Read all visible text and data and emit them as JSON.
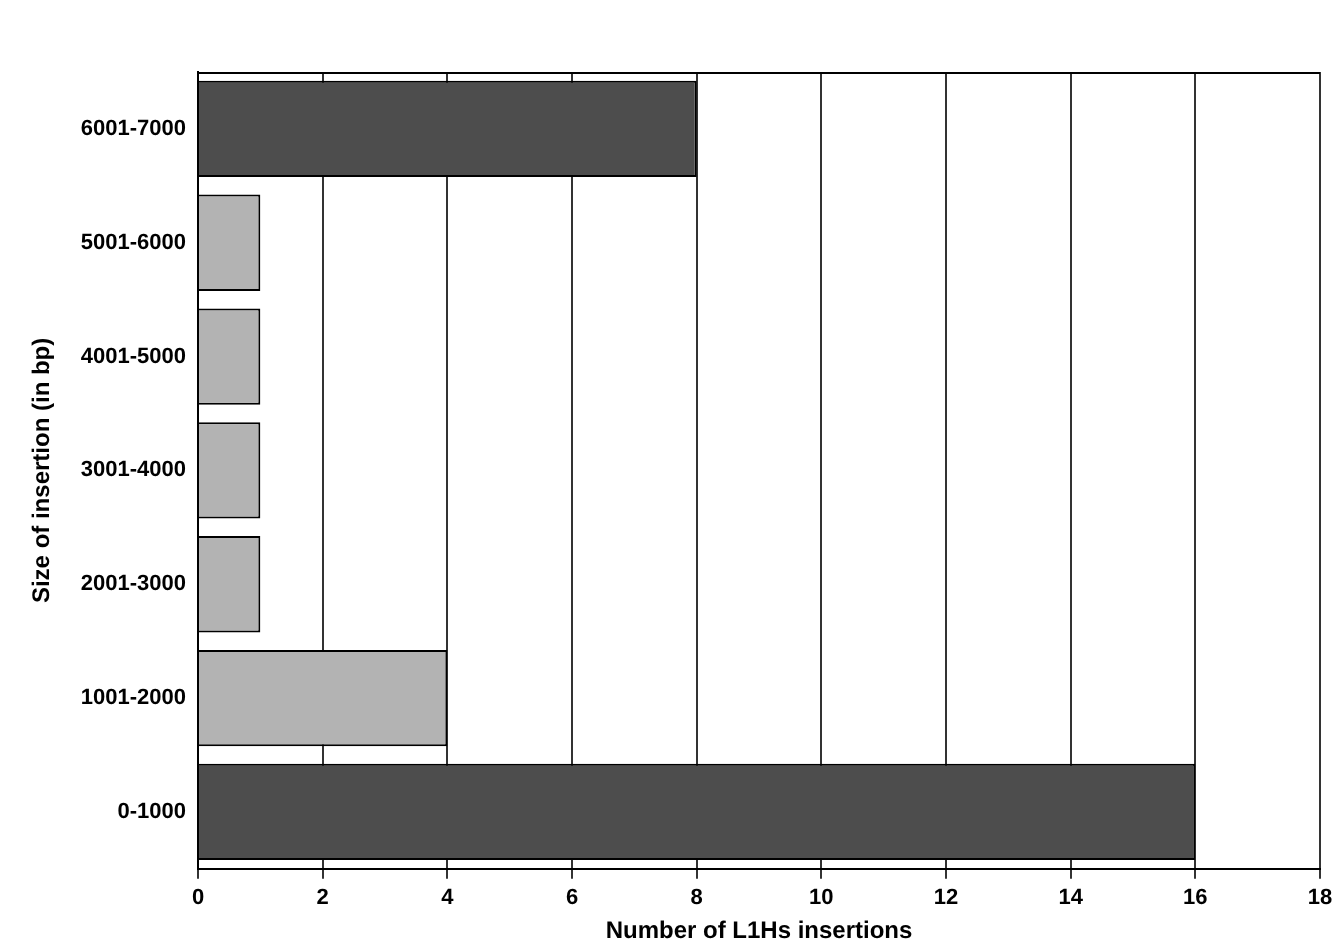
{
  "chart_data": {
    "type": "bar",
    "orientation": "horizontal",
    "xlabel": "Number of L1Hs insertions",
    "ylabel": "Size of insertion (in bp)",
    "categories": [
      "6001-7000",
      "5001-6000",
      "4001-5000",
      "3001-4000",
      "2001-3000",
      "1001-2000",
      "0-1000"
    ],
    "values": [
      8,
      1,
      1,
      1,
      1,
      4,
      16
    ],
    "colors": [
      "#4d4d4d",
      "#b3b3b3",
      "#b3b3b3",
      "#b3b3b3",
      "#b3b3b3",
      "#b3b3b3",
      "#4d4d4d"
    ],
    "xlim": [
      0,
      18
    ],
    "xticks": [
      0,
      2,
      4,
      6,
      8,
      10,
      12,
      14,
      16,
      18
    ],
    "grid": "x",
    "legend": false
  }
}
